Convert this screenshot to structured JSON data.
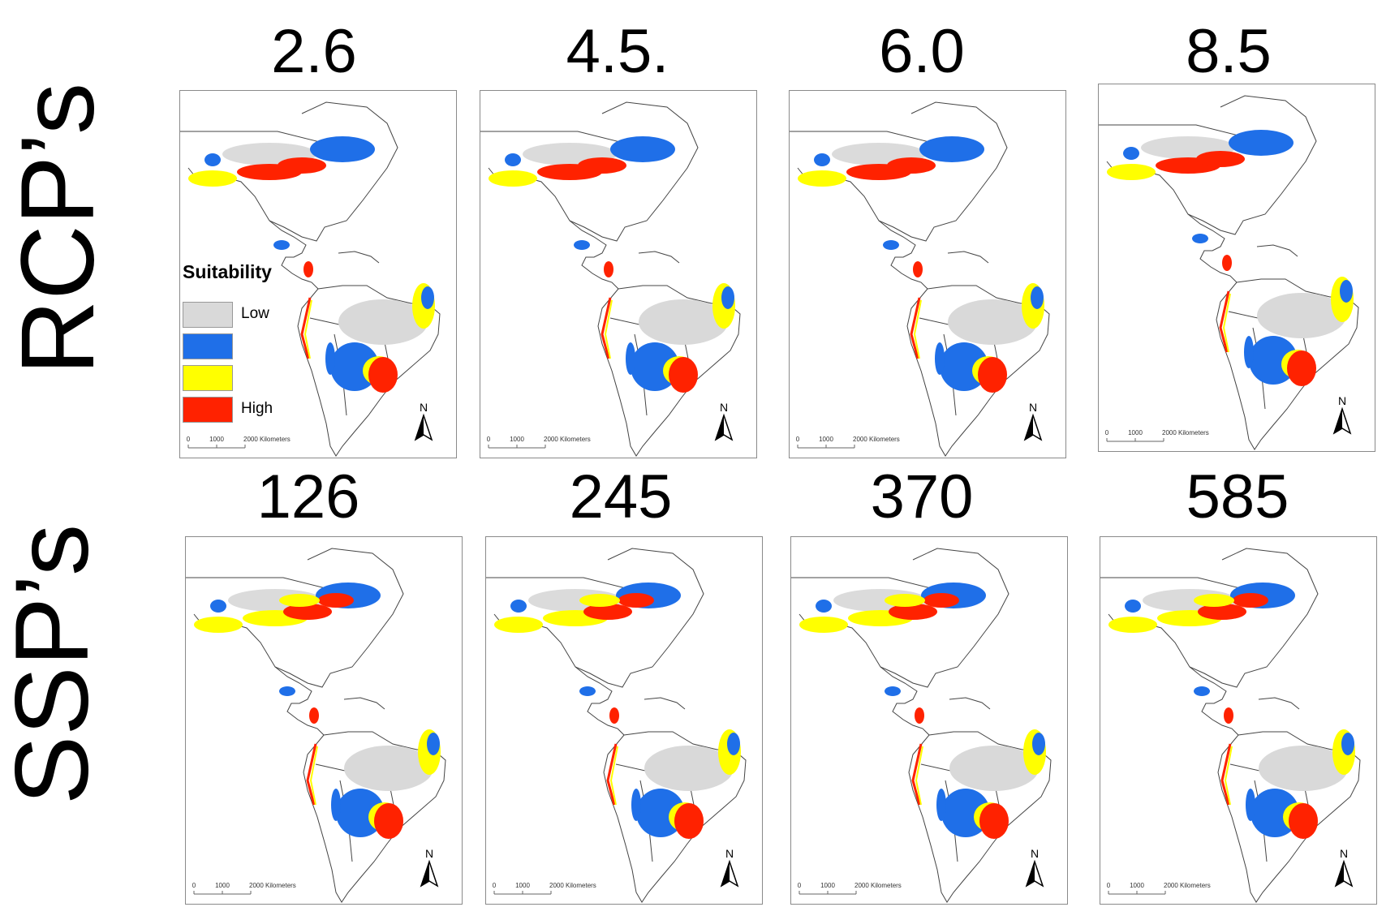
{
  "rows": [
    {
      "label": "RCP’s",
      "panels": [
        {
          "title": "2.6"
        },
        {
          "title": "4.5."
        },
        {
          "title": "6.0"
        },
        {
          "title": "8.5"
        }
      ]
    },
    {
      "label": "SSP’s",
      "panels": [
        {
          "title": "126"
        },
        {
          "title": "245"
        },
        {
          "title": "370"
        },
        {
          "title": "585"
        }
      ]
    }
  ],
  "legend": {
    "title": "Suitability",
    "classes": [
      {
        "label": "Low",
        "color": "#d9d9d9"
      },
      {
        "label": "",
        "color": "#1f6fe8"
      },
      {
        "label": "",
        "color": "#ffff00"
      },
      {
        "label": "High",
        "color": "#ff2200"
      }
    ]
  },
  "scale_bar": {
    "ticks": [
      "0",
      "1000",
      "2000 Kilometers"
    ]
  },
  "north_label": "N"
}
